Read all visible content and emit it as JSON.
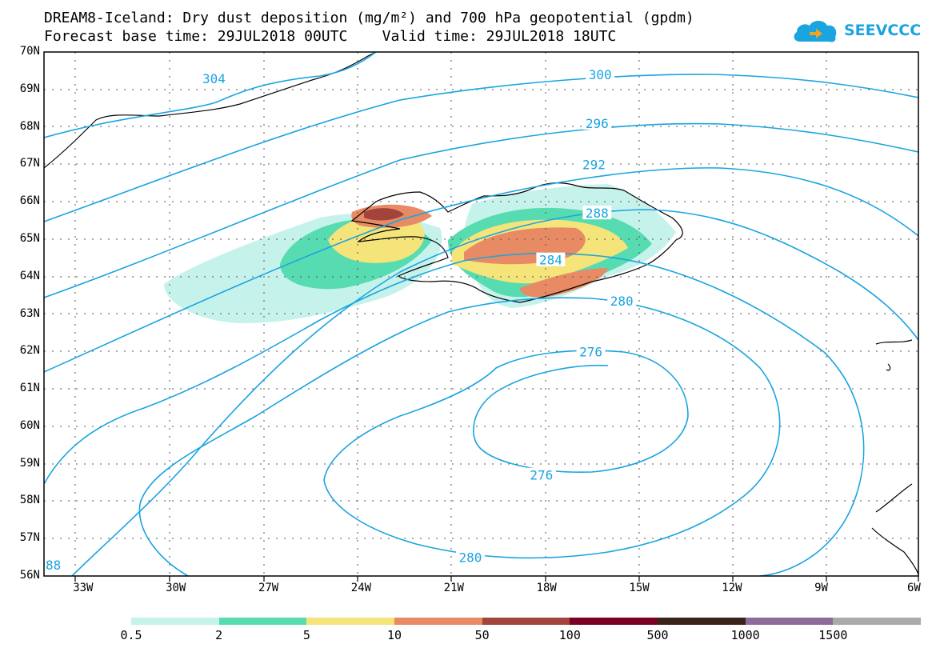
{
  "title": {
    "line1": "DREAM8-Iceland: Dry dust deposition (mg/m²) and 700 hPa geopotential (gpdm)",
    "line2": "Forecast base time: 29JUL2018 00UTC    Valid time: 29JUL2018 18UTC"
  },
  "logo": {
    "text": "SEEVCCC",
    "icon": "cloud-logo-icon",
    "color": "#1aa4e0"
  },
  "map": {
    "lat_labels": [
      "70N",
      "69N",
      "68N",
      "67N",
      "66N",
      "65N",
      "64N",
      "63N",
      "62N",
      "61N",
      "60N",
      "59N",
      "58N",
      "57N",
      "56N"
    ],
    "lon_labels": [
      "33W",
      "30W",
      "27W",
      "24W",
      "21W",
      "18W",
      "15W",
      "12W",
      "9W",
      "6W"
    ],
    "lat_range": [
      56,
      70
    ],
    "lon_range": [
      -34.3,
      -6
    ],
    "grid": true,
    "contour_color": "#1aa4e0",
    "contour_labels": [
      {
        "text": "304",
        "lon": -28.8,
        "lat": 69.3
      },
      {
        "text": "300",
        "lon": -16.3,
        "lat": 69.4
      },
      {
        "text": "296",
        "lon": -16.4,
        "lat": 68.1
      },
      {
        "text": "292",
        "lon": -16.5,
        "lat": 67.0
      },
      {
        "text": "288",
        "lon": -16.4,
        "lat": 65.7
      },
      {
        "text": "284",
        "lon": -17.9,
        "lat": 64.45
      },
      {
        "text": "280",
        "lon": -15.6,
        "lat": 63.35
      },
      {
        "text": "276",
        "lon": -16.6,
        "lat": 62.0
      },
      {
        "text": "276",
        "lon": -18.2,
        "lat": 58.7
      },
      {
        "text": "280",
        "lon": -20.5,
        "lat": 56.5
      },
      {
        "text": "88",
        "lon": -34.0,
        "lat": 56.3
      }
    ]
  },
  "legend": {
    "colors": [
      "#c6f2ec",
      "#56dcb0",
      "#f4e47a",
      "#e88a64",
      "#a3443c",
      "#7a0026",
      "#3a2318",
      "#8e6b9c",
      "#aaaaaa"
    ],
    "labels": [
      "0.5",
      "2",
      "5",
      "10",
      "50",
      "100",
      "500",
      "1000",
      "1500"
    ]
  }
}
